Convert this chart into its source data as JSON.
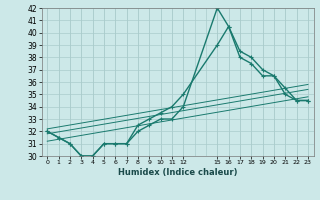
{
  "xlabel": "Humidex (Indice chaleur)",
  "ylabel": "",
  "background_color": "#cce8e8",
  "grid_color": "#aacccc",
  "line_color": "#1a7a6e",
  "xlim": [
    -0.5,
    23.5
  ],
  "ylim": [
    30,
    42
  ],
  "yticks": [
    30,
    31,
    32,
    33,
    34,
    35,
    36,
    37,
    38,
    39,
    40,
    41,
    42
  ],
  "xticks": [
    0,
    1,
    2,
    3,
    4,
    5,
    6,
    7,
    8,
    9,
    10,
    11,
    12,
    15,
    16,
    17,
    18,
    19,
    20,
    21,
    22,
    23
  ],
  "xtick_labels": [
    "0",
    "1",
    "2",
    "3",
    "4",
    "5",
    "6",
    "7",
    "8",
    "9",
    "10",
    "11",
    "12",
    "15",
    "16",
    "17",
    "18",
    "19",
    "20",
    "21",
    "22",
    "23"
  ],
  "series": [
    {
      "x": [
        0,
        1,
        2,
        3,
        4,
        5,
        6,
        7,
        8,
        9,
        10,
        11,
        12,
        15,
        16,
        17,
        18,
        19,
        20,
        21,
        22,
        23
      ],
      "y": [
        32,
        31.5,
        31,
        30,
        30,
        31,
        31,
        31,
        32,
        32.5,
        33,
        33,
        34,
        42,
        40.5,
        38.5,
        38,
        37,
        36.5,
        35,
        34.5,
        34.5
      ],
      "marker": "+",
      "markersize": 3,
      "linestyle": "-",
      "linewidth": 1.0
    },
    {
      "x": [
        0,
        1,
        2,
        3,
        4,
        5,
        6,
        7,
        8,
        9,
        10,
        11,
        12,
        15,
        16,
        17,
        18,
        19,
        20,
        21,
        22,
        23
      ],
      "y": [
        32,
        31.5,
        31,
        30,
        30,
        31,
        31,
        31,
        32.5,
        33,
        33.5,
        34,
        35,
        39,
        40.5,
        38,
        37.5,
        36.5,
        36.5,
        35.5,
        34.5,
        34.5
      ],
      "marker": "+",
      "markersize": 3,
      "linestyle": "-",
      "linewidth": 1.0
    },
    {
      "x": [
        0,
        23
      ],
      "y": [
        31.2,
        34.8
      ],
      "marker": null,
      "markersize": 0,
      "linestyle": "-",
      "linewidth": 0.7
    },
    {
      "x": [
        0,
        23
      ],
      "y": [
        31.8,
        35.4
      ],
      "marker": null,
      "markersize": 0,
      "linestyle": "-",
      "linewidth": 0.7
    },
    {
      "x": [
        0,
        23
      ],
      "y": [
        32.2,
        35.8
      ],
      "marker": null,
      "markersize": 0,
      "linestyle": "-",
      "linewidth": 0.7
    }
  ]
}
